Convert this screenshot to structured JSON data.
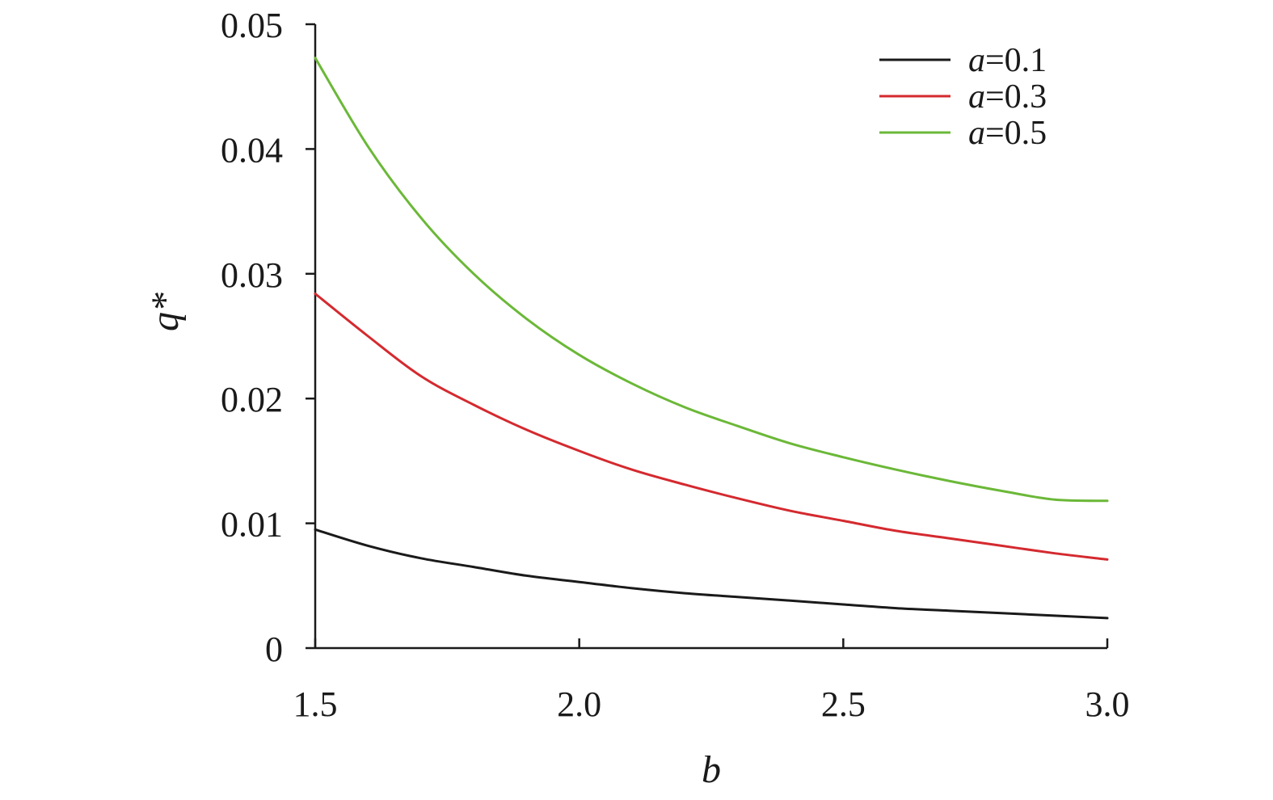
{
  "chart_data": {
    "type": "line",
    "title": "",
    "xlabel": "b",
    "ylabel": "q*",
    "xlim": [
      1.5,
      3.0
    ],
    "ylim": [
      0,
      0.05
    ],
    "x_ticks": [
      "1.5",
      "2.0",
      "2.5",
      "3.0"
    ],
    "x_tick_values": [
      1.5,
      2.0,
      2.5,
      3.0
    ],
    "y_ticks": [
      "0",
      "0.01",
      "0.02",
      "0.03",
      "0.04",
      "0.05"
    ],
    "y_tick_values": [
      0,
      0.01,
      0.02,
      0.03,
      0.04,
      0.05
    ],
    "grid": false,
    "legend_position": "top-right",
    "x": [
      1.5,
      1.6,
      1.7,
      1.8,
      1.9,
      2.0,
      2.1,
      2.2,
      2.3,
      2.4,
      2.5,
      2.6,
      2.7,
      2.8,
      2.9,
      3.0
    ],
    "series": [
      {
        "name": "a=0.1",
        "name_var": "a",
        "name_value": "=0.1",
        "color": "#1a1a1a",
        "values": [
          0.0095,
          0.0082,
          0.0072,
          0.0065,
          0.0058,
          0.0053,
          0.0048,
          0.0044,
          0.0041,
          0.0038,
          0.0035,
          0.0032,
          0.003,
          0.0028,
          0.0026,
          0.0024
        ]
      },
      {
        "name": "a=0.3",
        "name_var": "a",
        "name_value": "=0.3",
        "color": "#d42a2f",
        "values": [
          0.0284,
          0.025,
          0.0218,
          0.0195,
          0.0175,
          0.0158,
          0.0143,
          0.0131,
          0.012,
          0.011,
          0.0102,
          0.0094,
          0.0088,
          0.0082,
          0.0076,
          0.0071
        ]
      },
      {
        "name": "a=0.5",
        "name_var": "a",
        "name_value": "=0.5",
        "color": "#6bb838",
        "values": [
          0.0473,
          0.0402,
          0.0345,
          0.03,
          0.0264,
          0.0235,
          0.0212,
          0.0193,
          0.0178,
          0.0164,
          0.0153,
          0.0143,
          0.0134,
          0.0126,
          0.0119,
          0.0118
        ]
      }
    ]
  }
}
